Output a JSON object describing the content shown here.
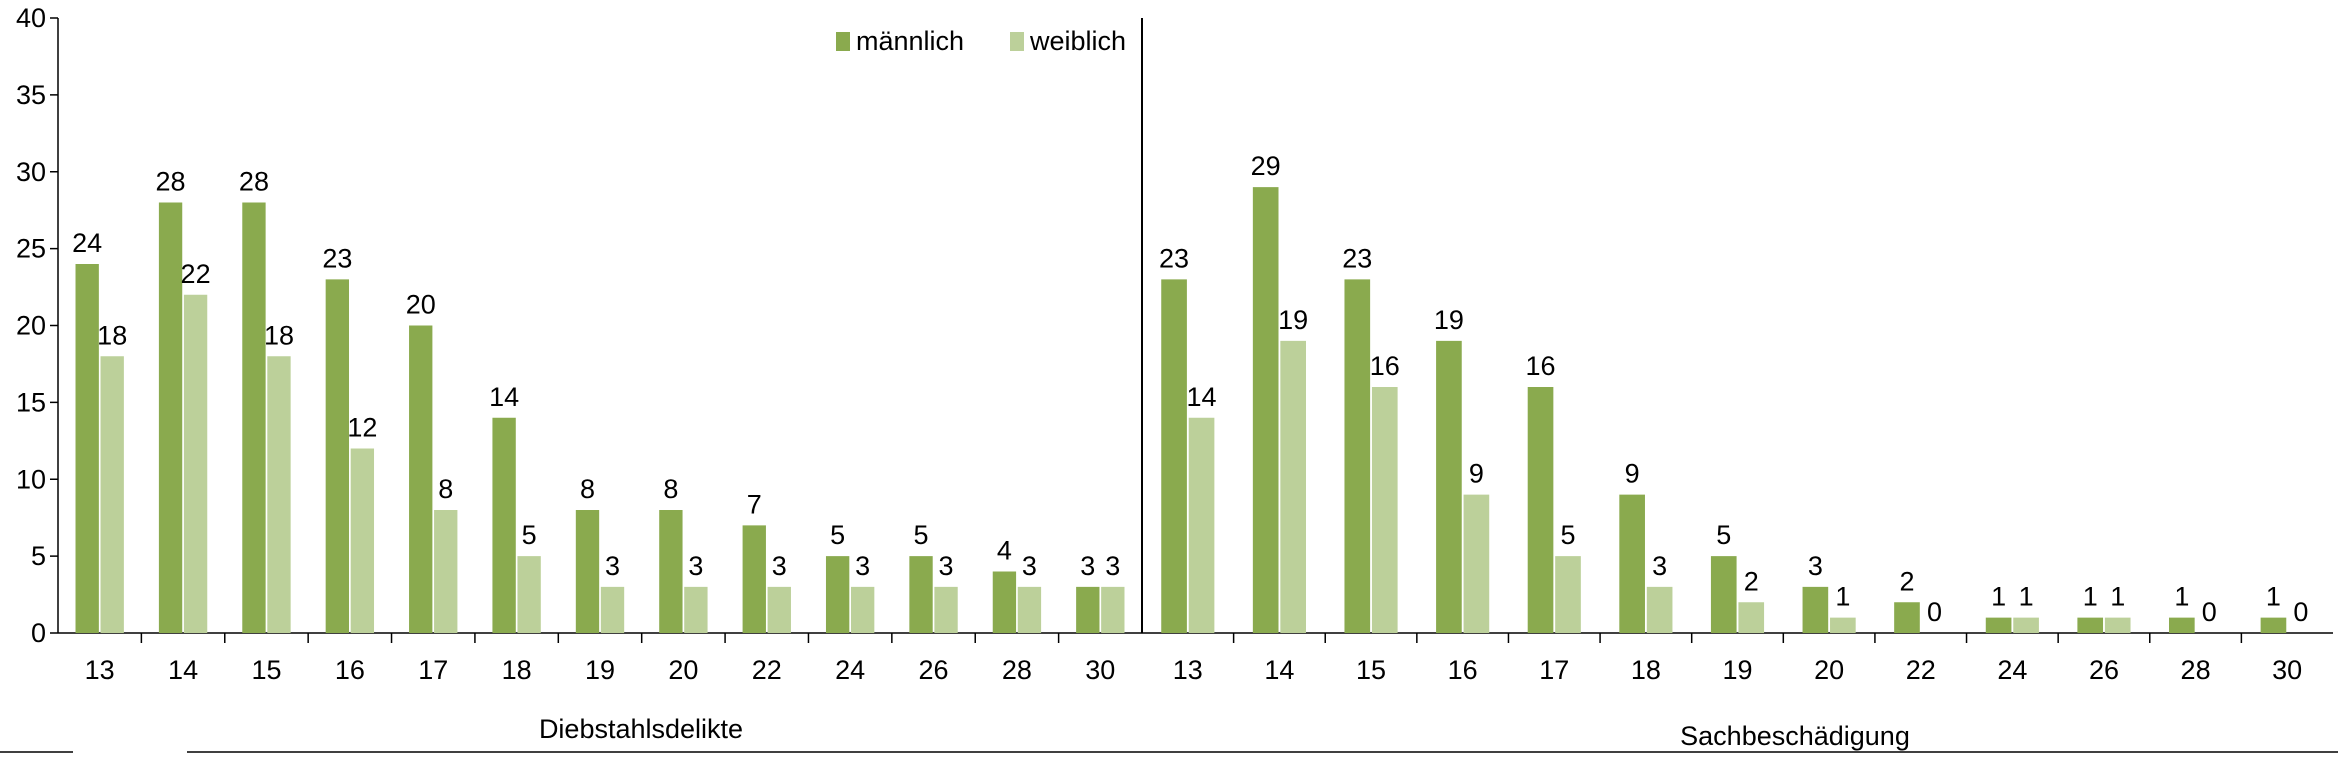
{
  "chart_data": {
    "type": "bar",
    "title": "",
    "xlabel": "",
    "ylabel": "",
    "ylim": [
      0,
      40
    ],
    "y_ticks": [
      "0",
      "5",
      "10",
      "15",
      "20",
      "25",
      "30",
      "35",
      "40"
    ],
    "grid": false,
    "legend": {
      "placement": "top-center",
      "entries": [
        "männlich",
        "weiblich"
      ]
    },
    "colors": {
      "männlich": "#8aaa4e",
      "weiblich": "#bcd09a"
    },
    "groups": [
      {
        "label": "Diebstahlsdelikte",
        "categories": [
          "13",
          "14",
          "15",
          "16",
          "17",
          "18",
          "19",
          "20",
          "22",
          "24",
          "26",
          "28",
          "30"
        ],
        "series": [
          {
            "name": "männlich",
            "values": [
              24,
              28,
              28,
              23,
              20,
              14,
              8,
              8,
              7,
              5,
              5,
              4,
              3
            ]
          },
          {
            "name": "weiblich",
            "values": [
              18,
              22,
              18,
              12,
              8,
              5,
              3,
              3,
              3,
              3,
              3,
              3,
              3
            ]
          }
        ]
      },
      {
        "label": "Sachbeschädigung",
        "categories": [
          "13",
          "14",
          "15",
          "16",
          "17",
          "18",
          "19",
          "20",
          "22",
          "24",
          "26",
          "28",
          "30"
        ],
        "series": [
          {
            "name": "männlich",
            "values": [
              23,
              29,
              23,
              19,
              16,
              9,
              5,
              3,
              2,
              1,
              1,
              1,
              1
            ]
          },
          {
            "name": "weiblich",
            "values": [
              14,
              19,
              16,
              9,
              5,
              3,
              2,
              1,
              0,
              1,
              1,
              0,
              0
            ]
          }
        ]
      }
    ]
  }
}
